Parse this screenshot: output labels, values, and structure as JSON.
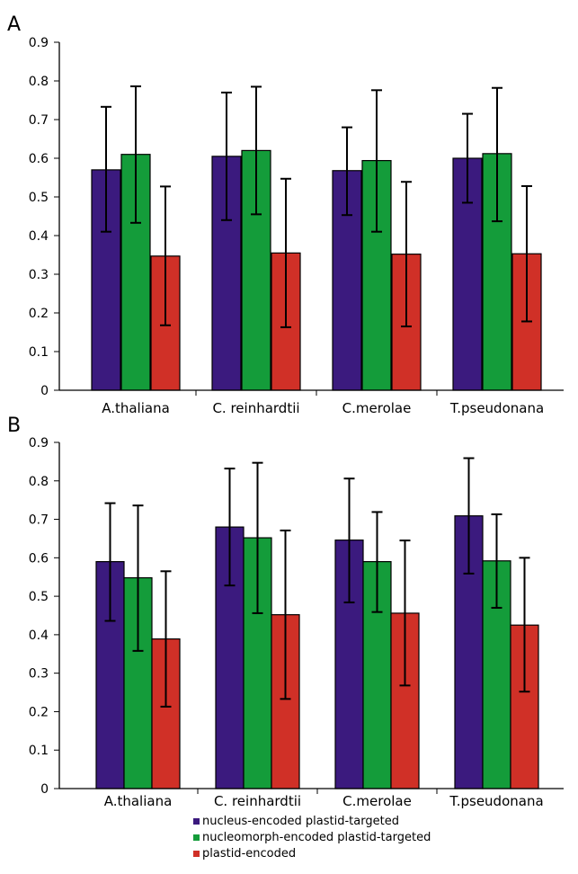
{
  "panels": [
    "A",
    "B"
  ],
  "legend": {
    "items": [
      {
        "label": "nucleus-encoded plastid-targeted",
        "color": "#3b1a7e"
      },
      {
        "label": "nucleomorph-encoded plastid-targeted",
        "color": "#149c3a"
      },
      {
        "label": "plastid-encoded",
        "color": "#d03027"
      }
    ],
    "position": "bottom-center"
  },
  "chart_data": [
    {
      "type": "bar",
      "panel": "A",
      "categories": [
        "A.thaliana",
        "C. reinhardtii",
        "C.merolae",
        "T.pseudonana"
      ],
      "series": [
        {
          "color": "#3b1a7e",
          "values": [
            0.57,
            0.605,
            0.568,
            0.6
          ],
          "error_low": [
            0.41,
            0.44,
            0.453,
            0.485
          ],
          "error_high": [
            0.733,
            0.77,
            0.68,
            0.715
          ]
        },
        {
          "color": "#149c3a",
          "values": [
            0.61,
            0.62,
            0.594,
            0.612
          ],
          "error_low": [
            0.433,
            0.455,
            0.41,
            0.437
          ],
          "error_high": [
            0.786,
            0.785,
            0.776,
            0.782
          ]
        },
        {
          "color": "#d03027",
          "values": [
            0.347,
            0.355,
            0.352,
            0.353
          ],
          "error_low": [
            0.168,
            0.163,
            0.165,
            0.178
          ],
          "error_high": [
            0.527,
            0.547,
            0.539,
            0.528
          ]
        }
      ],
      "yticks": [
        "0",
        "0.1",
        "0.2",
        "0.3",
        "0.4",
        "0.5",
        "0.6",
        "0.7",
        "0.8",
        "0.9"
      ],
      "ylim": [
        0,
        0.9
      ],
      "grid": false
    },
    {
      "type": "bar",
      "panel": "B",
      "categories": [
        "A.thaliana",
        "C. reinhardtii",
        "C.merolae",
        "T.pseudonana"
      ],
      "series": [
        {
          "color": "#3b1a7e",
          "values": [
            0.59,
            0.68,
            0.646,
            0.709
          ],
          "error_low": [
            0.436,
            0.528,
            0.484,
            0.559
          ],
          "error_high": [
            0.742,
            0.832,
            0.806,
            0.859
          ]
        },
        {
          "color": "#149c3a",
          "values": [
            0.548,
            0.652,
            0.59,
            0.592
          ],
          "error_low": [
            0.358,
            0.456,
            0.459,
            0.47
          ],
          "error_high": [
            0.736,
            0.847,
            0.719,
            0.713
          ]
        },
        {
          "color": "#d03027",
          "values": [
            0.389,
            0.452,
            0.456,
            0.425
          ],
          "error_low": [
            0.213,
            0.233,
            0.268,
            0.252
          ],
          "error_high": [
            0.565,
            0.671,
            0.645,
            0.6
          ]
        }
      ],
      "yticks": [
        "0",
        "0.1",
        "0.2",
        "0.3",
        "0.4",
        "0.5",
        "0.6",
        "0.7",
        "0.8",
        "0.9"
      ],
      "ylim": [
        0,
        0.9
      ],
      "grid": false
    }
  ]
}
